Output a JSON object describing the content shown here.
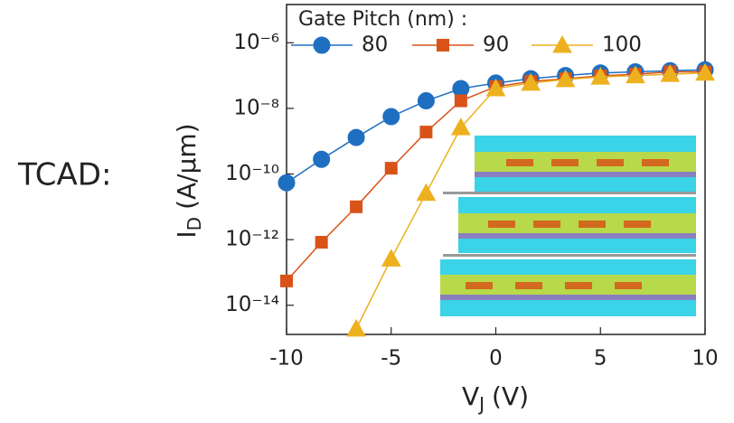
{
  "chart_data": {
    "type": "line",
    "side_label": "TCAD:",
    "legend_title": "Gate Pitch (nm) :",
    "xlabel": {
      "main": "V",
      "sub": "J",
      "unit": "(V)"
    },
    "ylabel": {
      "main": "I",
      "sub": "D",
      "unit": "(A/µm)"
    },
    "yscale": "log",
    "grid": false,
    "legend": "top",
    "x": [
      -10,
      -8.33,
      -6.67,
      -5,
      -3.33,
      -1.67,
      0,
      1.67,
      3.33,
      5,
      6.67,
      8.33,
      10
    ],
    "xlim": [
      -10,
      10
    ],
    "xticks": [
      -10,
      -5,
      0,
      5,
      10
    ],
    "ylim": [
      1e-15,
      1e-05
    ],
    "yticks": [
      {
        "value": 1e-14,
        "label": "10⁻¹⁴"
      },
      {
        "value": 1e-12,
        "label": "10⁻¹²"
      },
      {
        "value": 1e-10,
        "label": "10⁻¹⁰"
      },
      {
        "value": 1e-08,
        "label": "10⁻⁸"
      },
      {
        "value": 1e-06,
        "label": "10⁻⁶"
      }
    ],
    "series": [
      {
        "name": "80",
        "color": "#1f6fc0",
        "marker": "circle",
        "values": [
          5.4e-11,
          2.8e-10,
          1.3e-09,
          5.6e-09,
          1.7e-08,
          4e-08,
          5.9e-08,
          8e-08,
          1e-07,
          1.2e-07,
          1.3e-07,
          1.4e-07,
          1.5e-07
        ]
      },
      {
        "name": "90",
        "color": "#d95319",
        "marker": "square",
        "values": [
          5.5e-14,
          8.3e-13,
          1e-11,
          1.5e-10,
          1.9e-09,
          1.7e-08,
          4.6e-08,
          6.6e-08,
          8e-08,
          9.8e-08,
          1.1e-07,
          1.3e-07,
          1.3e-07
        ]
      },
      {
        "name": "100",
        "color": "#edb120",
        "marker": "triangle",
        "values": [
          null,
          null,
          1.9e-15,
          2.6e-13,
          2.6e-11,
          2.6e-09,
          4e-08,
          5.9e-08,
          7.6e-08,
          9.1e-08,
          1e-07,
          1.1e-07,
          1.2e-07
        ]
      }
    ]
  }
}
